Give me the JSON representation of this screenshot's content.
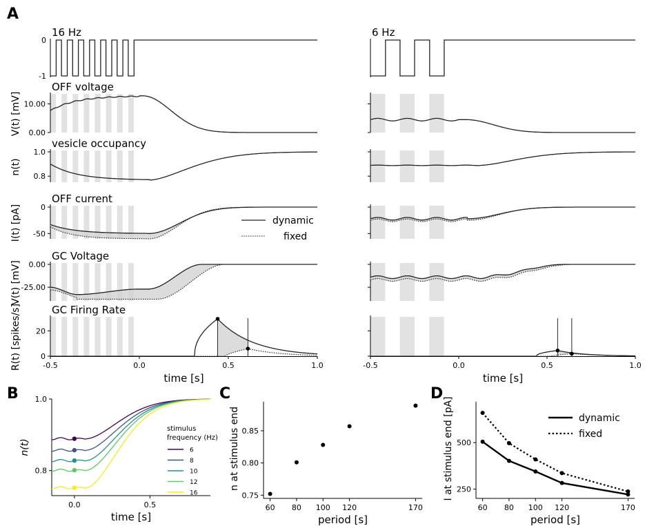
{
  "panel_labels": [
    "A",
    "B",
    "C",
    "D"
  ],
  "colors": {
    "line": "#222222",
    "shade": "#d3d3d3",
    "viridis": [
      "#440154",
      "#3b528b",
      "#21918c",
      "#5ec962",
      "#fde725"
    ]
  },
  "chart_data": [
    {
      "id": "A",
      "type": "line",
      "columns": [
        {
          "title": "16 Hz",
          "period_s": 0.0625
        },
        {
          "title": "6 Hz",
          "period_s": 0.1667
        }
      ],
      "stimulus_end_s": 0.0,
      "xlim": [
        -0.5,
        1.0
      ],
      "xticks": [
        "-0.5",
        "0.0",
        "0.5",
        "1.0"
      ],
      "xlabel": "time [s]",
      "rows": [
        {
          "title": "",
          "ylabel": "",
          "ylim": [
            -1,
            0
          ],
          "yticks": [
            "0",
            "-1"
          ]
        },
        {
          "title": "OFF voltage",
          "ylabel": "V(t) [mV]",
          "ylim": [
            0,
            13
          ],
          "yticks": [
            "10.00",
            "0.00"
          ]
        },
        {
          "title": "vesicle occupancy",
          "ylabel": "n(t)",
          "ylim": [
            0.75,
            1.0
          ],
          "yticks": [
            "1.0",
            "0.8"
          ]
        },
        {
          "title": "OFF current",
          "ylabel": "I(t) [pA]",
          "ylim": [
            -60,
            0
          ],
          "yticks": [
            "0",
            "-50"
          ]
        },
        {
          "title": "GC Voltage",
          "ylabel": "V(t) [mV]",
          "ylim": [
            -40,
            0
          ],
          "yticks": [
            "0.00",
            "-25.00"
          ]
        },
        {
          "title": "GC Firing Rate",
          "ylabel": "R(t) [spikes/s]",
          "ylim": [
            0,
            30
          ],
          "yticks": [
            "20",
            "0"
          ]
        }
      ],
      "legend": [
        "dynamic",
        "fixed"
      ],
      "firing_markers": {
        "16 Hz": {
          "dynamic_peak": [
            0.44,
            29.5
          ],
          "fixed_peak": [
            0.61,
            6.0
          ]
        },
        "6 Hz": {
          "dynamic_peak": [
            0.56,
            4.5
          ],
          "fixed_peak": [
            0.64,
            2.0
          ]
        }
      }
    },
    {
      "id": "B",
      "type": "line",
      "xlabel": "time [s]",
      "ylabel": "n(t)",
      "xlim": [
        -0.15,
        0.9
      ],
      "ylim": [
        0.73,
        1.0
      ],
      "xticks": [
        "0.0",
        "0.5"
      ],
      "yticks": [
        "1.0",
        "0.8"
      ],
      "legend_title": [
        "stimulus",
        "frequency (Hz)"
      ],
      "series": [
        {
          "name": "6",
          "n_end": 0.889
        },
        {
          "name": "8",
          "n_end": 0.857
        },
        {
          "name": "10",
          "n_end": 0.828
        },
        {
          "name": "12",
          "n_end": 0.801
        },
        {
          "name": "16",
          "n_end": 0.752
        }
      ]
    },
    {
      "id": "C",
      "type": "scatter",
      "xlabel": "period [s]",
      "ylabel": "n at stimulus end",
      "xlim": [
        55,
        175
      ],
      "ylim": [
        0.745,
        0.895
      ],
      "xticks": [
        "60",
        "80",
        "100",
        "120",
        "170"
      ],
      "yticks": [
        "0.75",
        "0.80",
        "0.85"
      ],
      "x": [
        60,
        80,
        100,
        120,
        170
      ],
      "y": [
        0.752,
        0.801,
        0.828,
        0.857,
        0.889
      ]
    },
    {
      "id": "D",
      "type": "line",
      "xlabel": "period [s]",
      "ylabel": "I at stimulus end [pA]",
      "xlim": [
        55,
        175
      ],
      "ylim": [
        200,
        720
      ],
      "xticks": [
        "60",
        "80",
        "100",
        "120",
        "170"
      ],
      "yticks": [
        "500",
        "250"
      ],
      "legend": [
        "dynamic",
        "fixed"
      ],
      "x": [
        60,
        80,
        100,
        120,
        170
      ],
      "series": [
        {
          "name": "dynamic",
          "values": [
            505,
            402,
            345,
            283,
            221
          ]
        },
        {
          "name": "fixed",
          "values": [
            660,
            497,
            410,
            336,
            237
          ]
        }
      ]
    }
  ]
}
